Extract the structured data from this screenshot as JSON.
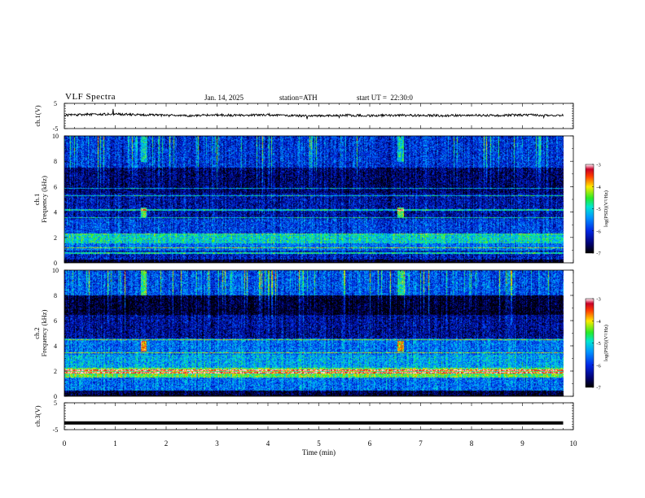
{
  "header": {
    "title": "VLF Spectra",
    "date": "Jan. 14, 2025",
    "station": "station=ATH",
    "start_ut": "start UT =  22:30:0"
  },
  "chart_data": [
    {
      "type": "line",
      "panel": "ch1_waveform",
      "ylabel": "ch.1(V)",
      "yticks": [
        5,
        -5
      ],
      "ylim": [
        -5,
        5
      ],
      "xlim": [
        0,
        10
      ],
      "series": [
        {
          "x": [
            0,
            0.5,
            1,
            1.5,
            2,
            2.5,
            3,
            3.5,
            4,
            4.5,
            5,
            5.5,
            6,
            6.5,
            7,
            7.5,
            8,
            8.5,
            9,
            9.5,
            9.8
          ],
          "values": [
            0.3,
            0.6,
            0.7,
            0.5,
            0.2,
            0.1,
            0.4,
            0.2,
            0.5,
            0.1,
            0.0,
            0.3,
            0.1,
            0.3,
            0.2,
            0.1,
            0.3,
            0.2,
            0.4,
            0.3,
            0.3
          ],
          "color": "#000000"
        }
      ]
    },
    {
      "type": "heatmap",
      "panel": "ch1_spectrogram",
      "ylabel": "ch.1\nFrequency (kHz)",
      "ylim": [
        0,
        10
      ],
      "yticks": [
        0,
        2,
        4,
        6,
        8,
        10
      ],
      "xlim": [
        0,
        10
      ],
      "data_end_min": 9.8,
      "colorbar": {
        "label": "log(PSD)(V²/Hz)",
        "ticks": [
          -3,
          -4,
          -5,
          -6,
          -7
        ],
        "range": [
          -7,
          -3
        ]
      },
      "bands": [
        {
          "f_from": 0.0,
          "f_to": 0.3,
          "level": -6.9
        },
        {
          "f_from": 0.3,
          "f_to": 1.0,
          "level": -6.2
        },
        {
          "f_from": 1.0,
          "f_to": 1.6,
          "level": -5.6
        },
        {
          "f_from": 1.6,
          "f_to": 2.3,
          "level": -5.0
        },
        {
          "f_from": 2.3,
          "f_to": 3.5,
          "level": -5.9
        },
        {
          "f_from": 3.5,
          "f_to": 5.5,
          "level": -6.3
        },
        {
          "f_from": 5.5,
          "f_to": 7.5,
          "level": -6.6
        },
        {
          "f_from": 7.5,
          "f_to": 10.0,
          "level": -6.0
        }
      ],
      "lines_khz": [
        0.8,
        1.2,
        2.3,
        3.6,
        4.2,
        5.3,
        5.9
      ],
      "events_min": [
        1.55,
        6.6
      ]
    },
    {
      "type": "heatmap",
      "panel": "ch2_spectrogram",
      "ylabel": "ch.2\nFrequency (kHz)",
      "ylim": [
        0,
        10
      ],
      "yticks": [
        0,
        2,
        4,
        6,
        8,
        10
      ],
      "xlim": [
        0,
        10
      ],
      "data_end_min": 9.8,
      "colorbar": {
        "label": "log(PSD)(V²/Hz)",
        "ticks": [
          -3,
          -4,
          -5,
          -6,
          -7
        ],
        "range": [
          -7,
          -3
        ]
      },
      "bands": [
        {
          "f_from": 0.0,
          "f_to": 0.5,
          "level": -6.8
        },
        {
          "f_from": 0.5,
          "f_to": 1.5,
          "level": -5.6
        },
        {
          "f_from": 1.5,
          "f_to": 2.3,
          "level": -4.5
        },
        {
          "f_from": 2.3,
          "f_to": 3.3,
          "level": -5.3
        },
        {
          "f_from": 3.3,
          "f_to": 4.6,
          "level": -5.6
        },
        {
          "f_from": 4.6,
          "f_to": 6.5,
          "level": -6.4
        },
        {
          "f_from": 6.5,
          "f_to": 8.0,
          "level": -6.9
        },
        {
          "f_from": 8.0,
          "f_to": 10.0,
          "level": -5.8
        }
      ],
      "lines_khz": [
        1.9,
        2.1,
        3.5,
        4.5
      ],
      "events_min": [
        1.55,
        6.6
      ]
    },
    {
      "type": "line",
      "panel": "ch3_waveform",
      "ylabel": "ch.3(V)",
      "yticks": [
        5,
        -5
      ],
      "ylim": [
        -5,
        5
      ],
      "xlim": [
        0,
        10
      ],
      "xlabel": "Time (min)",
      "xticks": [
        0,
        1,
        2,
        3,
        4,
        5,
        6,
        7,
        8,
        9,
        10
      ],
      "series": [
        {
          "x": [
            0,
            9.8
          ],
          "values": [
            -2.5,
            -2.5
          ],
          "color": "#000000"
        }
      ]
    }
  ]
}
